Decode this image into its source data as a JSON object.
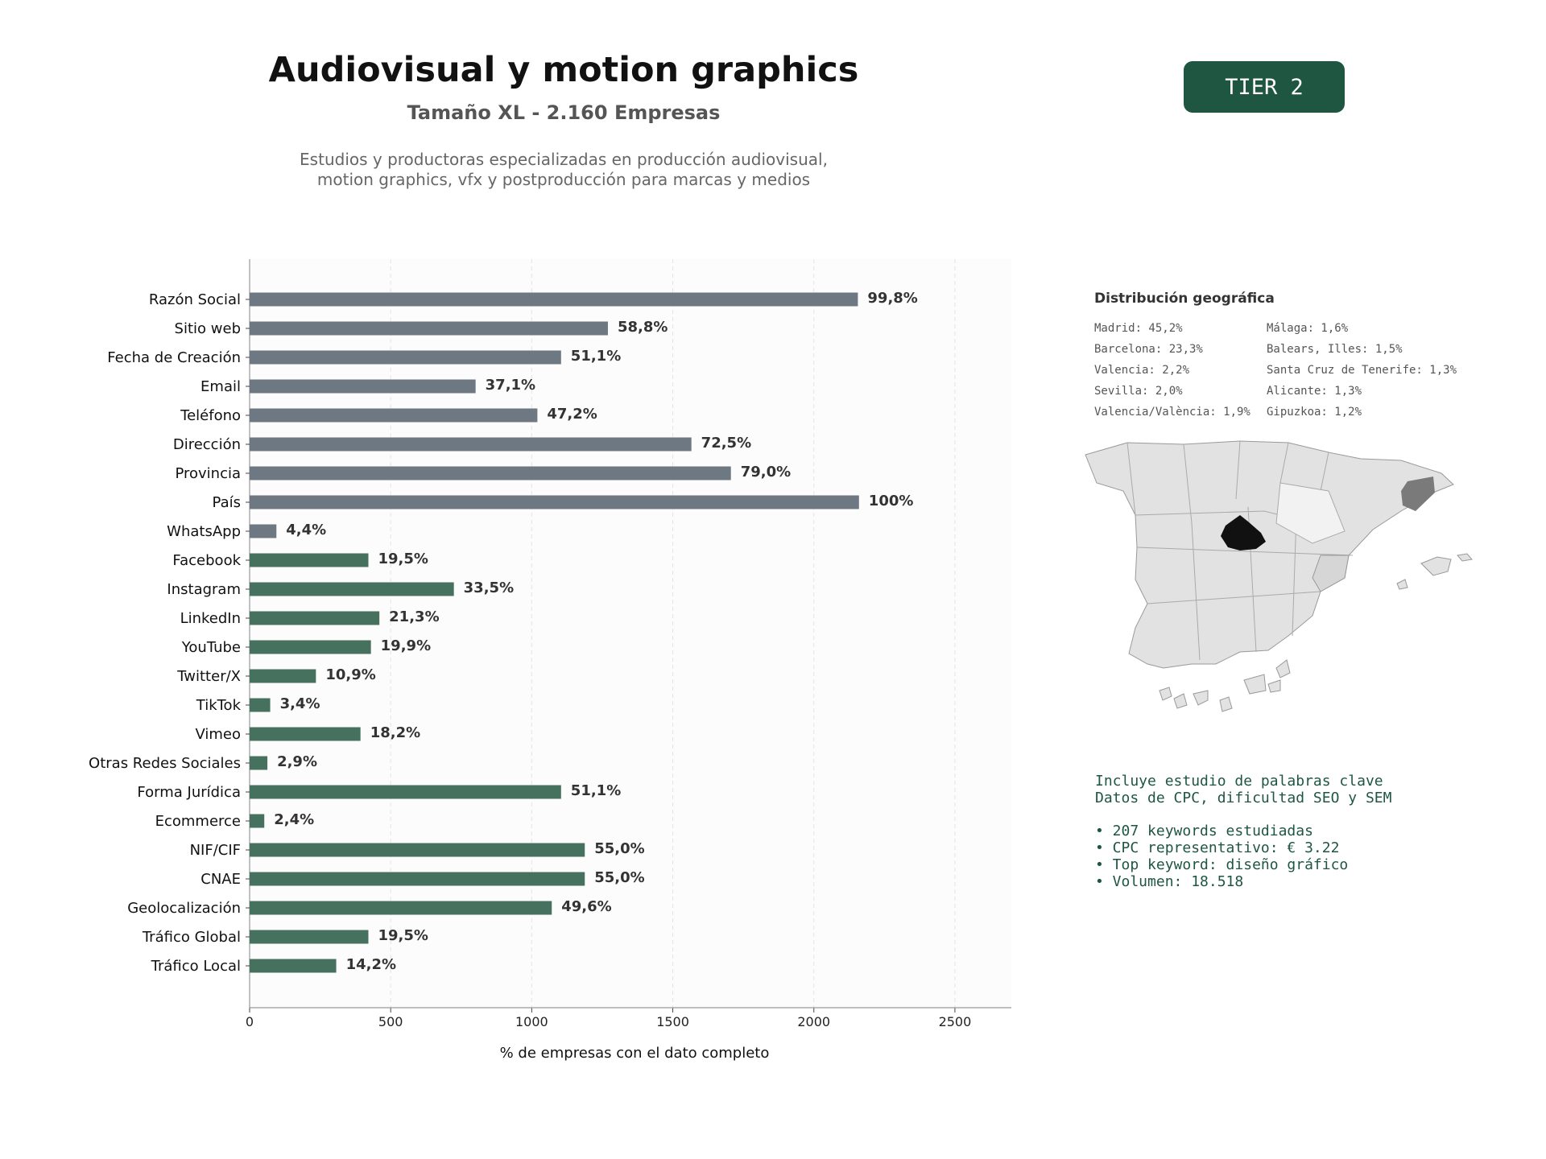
{
  "header": {
    "title": "Audiovisual y motion graphics",
    "subtitle": "Tamaño XL - 2.160 Empresas",
    "description_lines": [
      "Estudios y productoras especializadas en producción audiovisual,",
      "motion graphics, vfx y postproducción para marcas y medios"
    ],
    "tier_badge": "TIER 2"
  },
  "colors": {
    "contact_bar": "#6e7882",
    "digital_bar": "#47715f",
    "badge": "#1e5641",
    "madrid": "#111111",
    "barcelona": "#7a7a7a"
  },
  "chart_data": {
    "type": "bar",
    "orientation": "horizontal",
    "xlabel": "% de empresas con el dato completo",
    "xticks": [
      0,
      500,
      1000,
      1500,
      2000,
      2500
    ],
    "xlim": [
      0,
      2700
    ],
    "grid": true,
    "categories": [
      "Razón Social",
      "Sitio web",
      "Fecha de Creación",
      "Email",
      "Teléfono",
      "Dirección",
      "Provincia",
      "País",
      "WhatsApp",
      "Facebook",
      "Instagram",
      "LinkedIn",
      "YouTube",
      "Twitter/X",
      "TikTok",
      "Vimeo",
      "Otras Redes Sociales",
      "Forma Jurídica",
      "Ecommerce",
      "NIF/CIF",
      "CNAE",
      "Geolocalización",
      "Tráfico Global",
      "Tráfico Local"
    ],
    "values": [
      2156,
      1270,
      1104,
      801,
      1020,
      1566,
      1706,
      2160,
      95,
      421,
      724,
      460,
      430,
      235,
      73,
      393,
      63,
      1104,
      52,
      1188,
      1188,
      1071,
      421,
      307
    ],
    "labels": [
      "99,8%",
      "58,8%",
      "51,1%",
      "37,1%",
      "47,2%",
      "72,5%",
      "79,0%",
      "100%",
      "4,4%",
      "19,5%",
      "33,5%",
      "21,3%",
      "19,9%",
      "10,9%",
      "3,4%",
      "18,2%",
      "2,9%",
      "51,1%",
      "2,4%",
      "55,0%",
      "55,0%",
      "49,6%",
      "19,5%",
      "14,2%"
    ],
    "groups": [
      "contact",
      "contact",
      "contact",
      "contact",
      "contact",
      "contact",
      "contact",
      "contact",
      "contact",
      "digital",
      "digital",
      "digital",
      "digital",
      "digital",
      "digital",
      "digital",
      "digital",
      "digital",
      "digital",
      "digital",
      "digital",
      "digital",
      "digital",
      "digital"
    ]
  },
  "geo": {
    "title": "Distribución geográfica",
    "items": [
      "Madrid: 45,2%",
      "Málaga: 1,6%",
      "Barcelona: 23,3%",
      "Balears, Illes: 1,5%",
      "Valencia: 2,2%",
      "Santa Cruz de Tenerife: 1,3%",
      "Sevilla: 2,0%",
      "Alicante: 1,3%",
      "Valencia/València: 1,9%",
      "Gipuzkoa: 1,2%"
    ]
  },
  "notes": {
    "intro": [
      "Incluye estudio de palabras clave",
      "Datos de CPC, dificultad SEO y SEM"
    ],
    "bullets": [
      "• 207 keywords estudiadas",
      "• CPC representativo: € 3.22",
      "• Top keyword: diseño gráfico",
      "• Volumen: 18.518"
    ]
  }
}
